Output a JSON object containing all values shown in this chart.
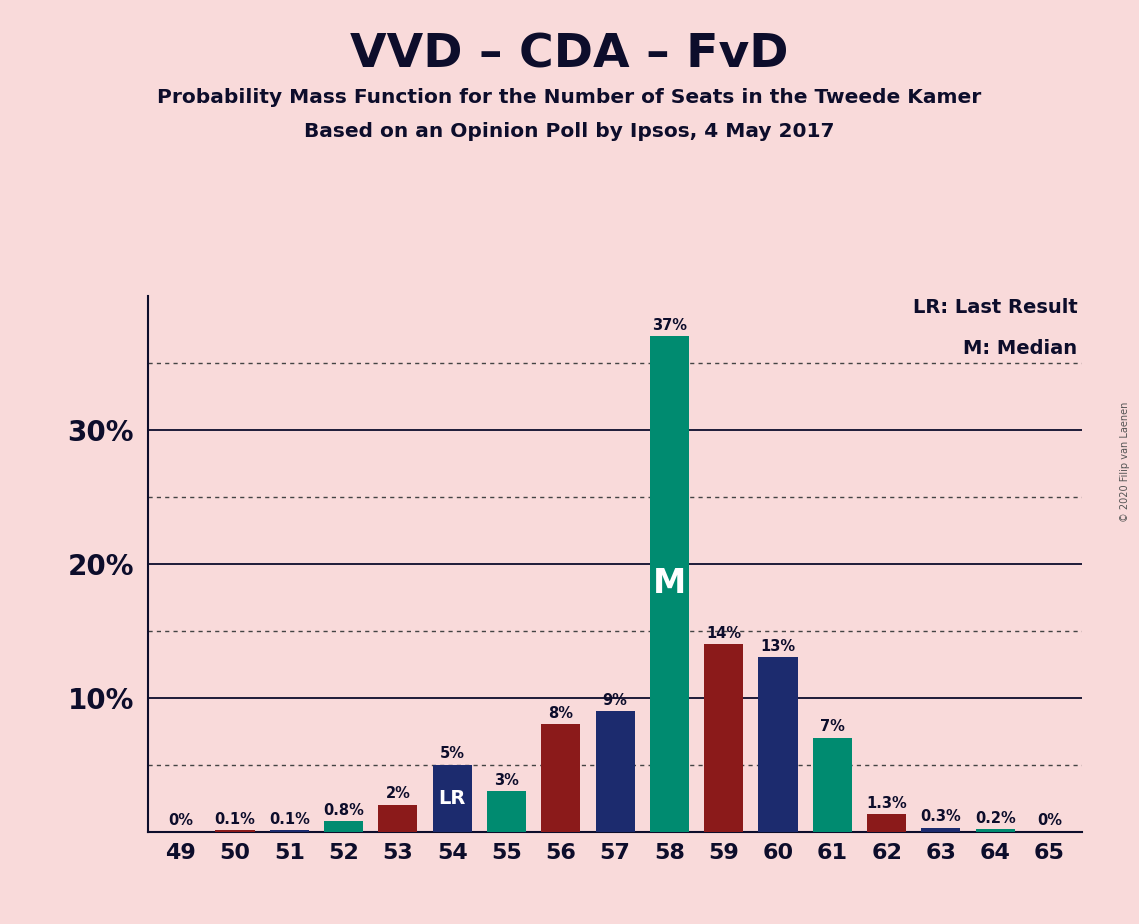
{
  "title": "VVD – CDA – FvD",
  "subtitle1": "Probability Mass Function for the Number of Seats in the Tweede Kamer",
  "subtitle2": "Based on an Opinion Poll by Ipsos, 4 May 2017",
  "copyright": "© 2020 Filip van Laenen",
  "legend_lr": "LR: Last Result",
  "legend_m": "M: Median",
  "seats": [
    49,
    50,
    51,
    52,
    53,
    54,
    55,
    56,
    57,
    58,
    59,
    60,
    61,
    62,
    63,
    64,
    65
  ],
  "values": [
    0.0,
    0.1,
    0.1,
    0.8,
    2.0,
    5.0,
    3.0,
    8.0,
    9.0,
    37.0,
    14.0,
    13.0,
    7.0,
    1.3,
    0.3,
    0.2,
    0.0
  ],
  "labels": [
    "0%",
    "0.1%",
    "0.1%",
    "0.8%",
    "2%",
    "5%",
    "3%",
    "8%",
    "9%",
    "37%",
    "14%",
    "13%",
    "7%",
    "1.3%",
    "0.3%",
    "0.2%",
    "0%"
  ],
  "colors": [
    "#008B70",
    "#8B1A1A",
    "#1C2B6E",
    "#008B70",
    "#8B1A1A",
    "#1C2B6E",
    "#008B70",
    "#8B1A1A",
    "#1C2B6E",
    "#008B70",
    "#8B1A1A",
    "#1C2B6E",
    "#008B70",
    "#8B1A1A",
    "#1C2B6E",
    "#008B70",
    "#8B1A1A"
  ],
  "lr_seat": 54,
  "median_seat": 58,
  "background_color": "#F9DADA",
  "solid_grid_lines": [
    10,
    20,
    30
  ],
  "dotted_grid_lines": [
    5,
    15,
    25,
    35
  ],
  "ylim": [
    0,
    40
  ],
  "label_fontsize": 10.5,
  "bar_width": 0.72
}
